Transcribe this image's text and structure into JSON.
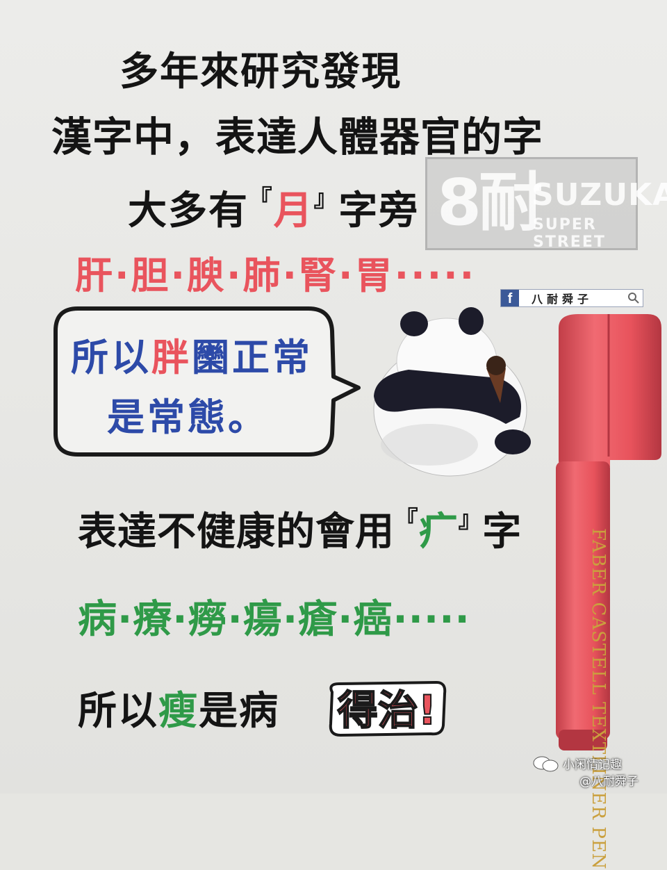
{
  "lines": {
    "l1": "多年來研究發現",
    "l2": "漢字中，表達人體器官的字",
    "l3_pre": "大多有",
    "l3_open": "『",
    "l3_key": "月",
    "l3_close": "』",
    "l3_post": "字旁",
    "l4": "肝·胆·腴·肺·腎·胃·····",
    "l5_pre": "表達不健康的會用",
    "l5_open": "『",
    "l5_key": "疒",
    "l5_close": "』",
    "l5_post": "字",
    "l6": "病·療·癆·瘍·瘡·癌·····",
    "l7_pre": "所以",
    "l7_key": "瘦",
    "l7_post": "是病",
    "l7_badge": "得治!"
  },
  "bubble": {
    "line1_pre": "所以",
    "line1_key": "胖",
    "line1_post": "圞正常",
    "line2": "是常態。"
  },
  "watermark": {
    "number": "8耐",
    "brand": "SUZUKA",
    "sub": "SUPER STREET"
  },
  "facebook": {
    "logo": "f",
    "name": "八耐舜子"
  },
  "marker": {
    "label": "FABER CASTELL  TEXTLINER PEN"
  },
  "footer": {
    "account": "小闲情记趣",
    "handle": "@八耐舜子"
  },
  "colors": {
    "red": "#e9545d",
    "blue": "#2d4aa8",
    "green": "#2f9a48",
    "marker": "#e8535c"
  }
}
